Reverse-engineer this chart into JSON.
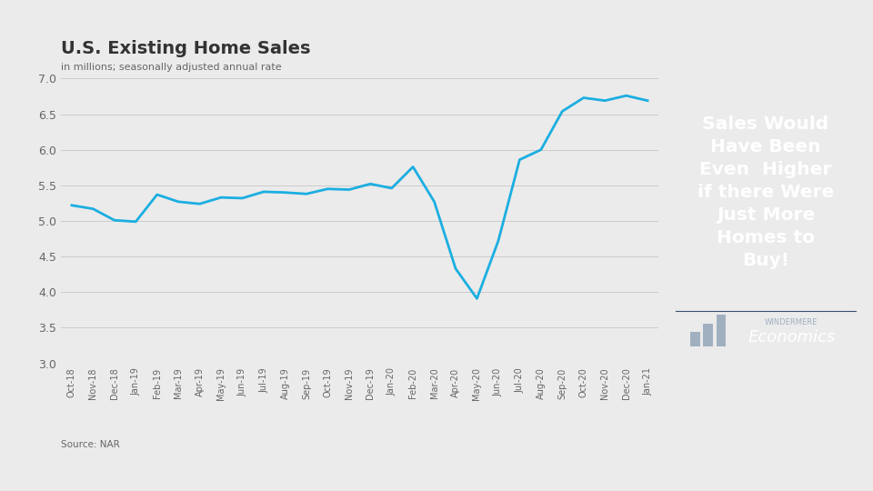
{
  "title": "U.S. Existing Home Sales",
  "subtitle": "in millions; seasonally adjusted annual rate",
  "source": "Source: NAR",
  "line_color": "#1baee1",
  "line_width": 2.0,
  "background_color": "#ebebeb",
  "chart_bg_color": "#ebebeb",
  "right_panel_color": "#1b3a5c",
  "right_text": "Sales Would\nHave Been\nEven  Higher\nif there Were\nJust More\nHomes to\nBuy!",
  "right_text_color": "#ffffff",
  "windermere_label": "WINDERMERE",
  "economics_label": "Economics",
  "windermere_color": "#a0b0c0",
  "economics_color": "#ffffff",
  "ylim": [
    3.0,
    7.0
  ],
  "yticks": [
    3.0,
    3.5,
    4.0,
    4.5,
    5.0,
    5.5,
    6.0,
    6.5,
    7.0
  ],
  "labels": [
    "Oct-18",
    "Nov-18",
    "Dec-18",
    "Jan-19",
    "Feb-19",
    "Mar-19",
    "Apr-19",
    "May-19",
    "Jun-19",
    "Jul-19",
    "Aug-19",
    "Sep-19",
    "Oct-19",
    "Nov-19",
    "Dec-19",
    "Jan-20",
    "Feb-20",
    "Mar-20",
    "Apr-20",
    "May-20",
    "Jun-20",
    "Jul-20",
    "Aug-20",
    "Sep-20",
    "Oct-20",
    "Nov-20",
    "Dec-20",
    "Jan-21"
  ],
  "values": [
    5.22,
    5.17,
    5.01,
    4.99,
    5.37,
    5.27,
    5.24,
    5.33,
    5.32,
    5.41,
    5.4,
    5.38,
    5.45,
    5.44,
    5.52,
    5.46,
    5.76,
    5.27,
    4.33,
    3.91,
    4.72,
    5.86,
    6.0,
    6.54,
    6.73,
    6.69,
    6.76,
    6.69
  ]
}
